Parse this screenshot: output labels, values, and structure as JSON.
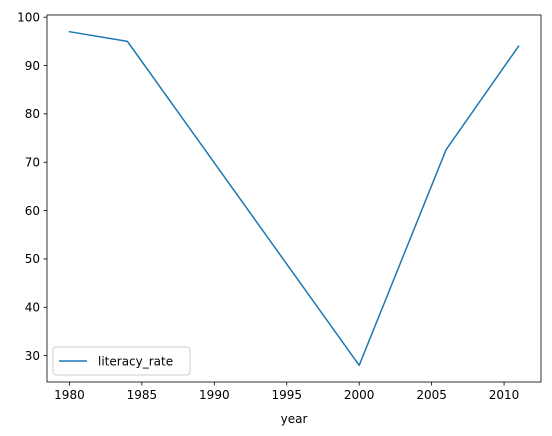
{
  "chart_data": {
    "type": "line",
    "xlabel": "year",
    "ylabel": "",
    "xlim": [
      1978.45,
      2012.55
    ],
    "ylim": [
      24.55,
      100.45
    ],
    "x_ticks": [
      1980,
      1985,
      1990,
      1995,
      2000,
      2005,
      2010
    ],
    "y_ticks": [
      30,
      40,
      50,
      60,
      70,
      80,
      90,
      100
    ],
    "grid": false,
    "legend_position": "lower-left",
    "series": [
      {
        "name": "literacy_rate",
        "color": "#1f77b4",
        "x": [
          1980,
          1984,
          2000,
          2006,
          2011
        ],
        "y": [
          97,
          95,
          28,
          72.6,
          94
        ]
      }
    ]
  }
}
